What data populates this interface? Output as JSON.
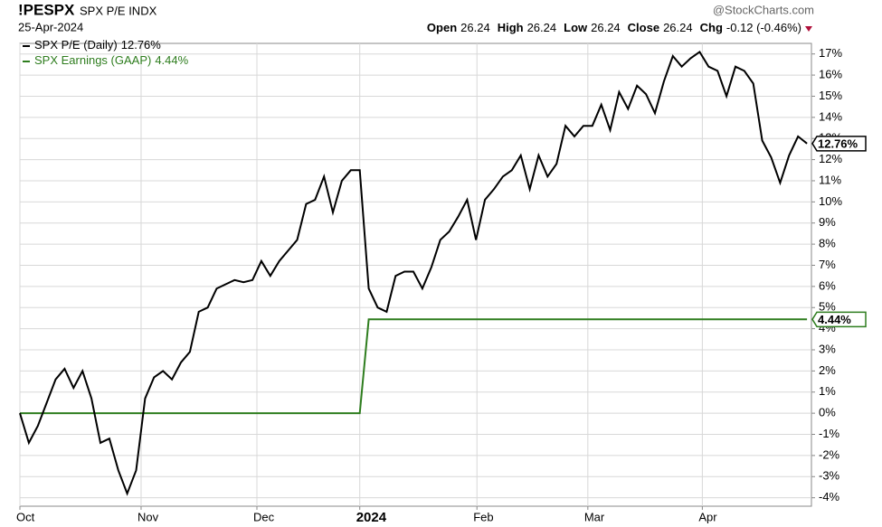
{
  "header": {
    "symbol": "!PESPX",
    "name": "SPX P/E INDX",
    "date": "25-Apr-2024",
    "brand": "@StockCharts.com",
    "quote": [
      {
        "label": "Open",
        "value": "26.24"
      },
      {
        "label": "High",
        "value": "26.24"
      },
      {
        "label": "Low",
        "value": "26.24"
      },
      {
        "label": "Close",
        "value": "26.24"
      },
      {
        "label": "Chg",
        "value": "-0.12 (-0.46%)"
      }
    ]
  },
  "chart_data": {
    "type": "line",
    "grid": true,
    "xlim": [
      0,
      88.5
    ],
    "xticks": [
      {
        "value": 0,
        "label": "Oct"
      },
      {
        "value": 13.55,
        "label": "Nov"
      },
      {
        "value": 26.5,
        "label": "Dec"
      },
      {
        "value": 38,
        "label": "2024"
      },
      {
        "value": 51.1,
        "label": "Feb"
      },
      {
        "value": 63.5,
        "label": "Mar"
      },
      {
        "value": 76.3,
        "label": "Apr"
      }
    ],
    "ylim": [
      -4.4,
      17.5
    ],
    "yticks": [
      {
        "value": 17,
        "label": "17%"
      },
      {
        "value": 16,
        "label": "16%"
      },
      {
        "value": 15,
        "label": "15%"
      },
      {
        "value": 14,
        "label": "14%"
      },
      {
        "value": 13,
        "label": "13%"
      },
      {
        "value": 12,
        "label": "12%"
      },
      {
        "value": 11,
        "label": "11%"
      },
      {
        "value": 10,
        "label": "10%"
      },
      {
        "value": 9,
        "label": "9%"
      },
      {
        "value": 8,
        "label": "8%"
      },
      {
        "value": 7,
        "label": "7%"
      },
      {
        "value": 6,
        "label": "6%"
      },
      {
        "value": 5,
        "label": "5%"
      },
      {
        "value": 4,
        "label": "4%"
      },
      {
        "value": 3,
        "label": "3%"
      },
      {
        "value": 2,
        "label": "2%"
      },
      {
        "value": 1,
        "label": "1%"
      },
      {
        "value": 0,
        "label": "0%"
      },
      {
        "value": -1,
        "label": "-1%"
      },
      {
        "value": -2,
        "label": "-2%"
      },
      {
        "value": -3,
        "label": "-3%"
      },
      {
        "value": -4,
        "label": "-4%"
      }
    ],
    "series": [
      {
        "name": "SPX P/E (Daily)",
        "color": "#000000",
        "last_label": "12.76%",
        "values": [
          0,
          -1.4,
          -0.6,
          0.5,
          1.6,
          2.1,
          1.2,
          2.0,
          0.7,
          -1.4,
          -1.2,
          -2.7,
          -3.8,
          -2.7,
          0.7,
          1.7,
          2.0,
          1.6,
          2.4,
          2.9,
          4.8,
          5.0,
          5.9,
          6.1,
          6.3,
          6.2,
          6.3,
          7.2,
          6.5,
          7.2,
          7.7,
          8.2,
          9.9,
          10.1,
          11.2,
          9.5,
          11.0,
          11.5,
          11.5,
          5.9,
          5.0,
          4.8,
          6.5,
          6.7,
          6.7,
          5.9,
          6.9,
          8.2,
          8.6,
          9.3,
          10.1,
          8.2,
          10.1,
          10.6,
          11.2,
          11.5,
          12.2,
          10.6,
          12.2,
          11.2,
          11.8,
          13.6,
          13.1,
          13.6,
          13.6,
          14.6,
          13.4,
          15.2,
          14.4,
          15.5,
          15.1,
          14.2,
          15.7,
          16.9,
          16.4,
          16.8,
          17.1,
          16.4,
          16.2,
          15.0,
          16.4,
          16.2,
          15.6,
          12.9,
          12.1,
          10.9,
          12.2,
          13.1,
          12.76
        ]
      },
      {
        "name": "SPX Earnings (GAAP)",
        "color": "#2e7d1e",
        "last_label": "4.44%",
        "values": [
          0,
          0,
          0,
          0,
          0,
          0,
          0,
          0,
          0,
          0,
          0,
          0,
          0,
          0,
          0,
          0,
          0,
          0,
          0,
          0,
          0,
          0,
          0,
          0,
          0,
          0,
          0,
          0,
          0,
          0,
          0,
          0,
          0,
          0,
          0,
          0,
          0,
          0,
          0,
          4.44,
          4.44,
          4.44,
          4.44,
          4.44,
          4.44,
          4.44,
          4.44,
          4.44,
          4.44,
          4.44,
          4.44,
          4.44,
          4.44,
          4.44,
          4.44,
          4.44,
          4.44,
          4.44,
          4.44,
          4.44,
          4.44,
          4.44,
          4.44,
          4.44,
          4.44,
          4.44,
          4.44,
          4.44,
          4.44,
          4.44,
          4.44,
          4.44,
          4.44,
          4.44,
          4.44,
          4.44,
          4.44,
          4.44,
          4.44,
          4.44,
          4.44,
          4.44,
          4.44,
          4.44,
          4.44,
          4.44,
          4.44,
          4.44,
          4.44
        ]
      }
    ]
  }
}
